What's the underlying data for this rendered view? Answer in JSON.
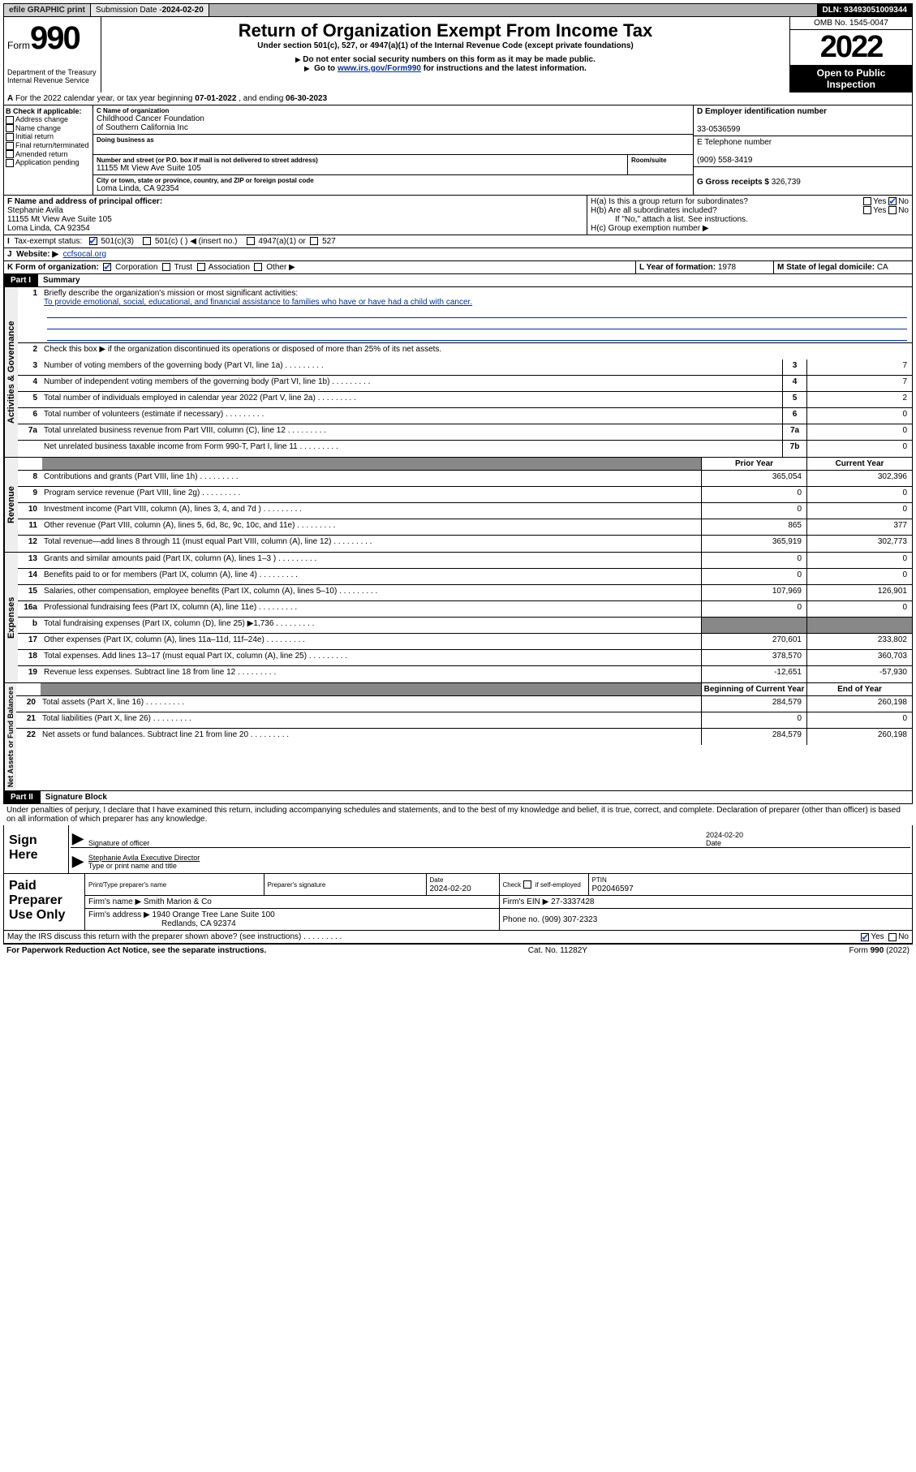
{
  "topbar": {
    "efile": "efile GRAPHIC print",
    "subdate_lbl": "Submission Date - ",
    "subdate": "2024-02-20",
    "dln": "DLN: 93493051009344"
  },
  "header": {
    "form_word": "Form",
    "form_num": "990",
    "dept": "Department of the Treasury\nInternal Revenue Service",
    "title": "Return of Organization Exempt From Income Tax",
    "sub1": "Under section 501(c), 527, or 4947(a)(1) of the Internal Revenue Code (except private foundations)",
    "sub2": "Do not enter social security numbers on this form as it may be made public.",
    "sub3_a": "Go to ",
    "sub3_link": "www.irs.gov/Form990",
    "sub3_b": " for instructions and the latest information.",
    "omb": "OMB No. 1545-0047",
    "year": "2022",
    "public": "Open to Public Inspection"
  },
  "A": {
    "text_a": "For the 2022 calendar year, or tax year beginning ",
    "begin": "07-01-2022",
    "text_b": ", and ending ",
    "end": "06-30-2023"
  },
  "B": {
    "hdr": "B Check if applicable:",
    "opts": [
      "Address change",
      "Name change",
      "Initial return",
      "Final return/terminated",
      "Amended return",
      "Application pending"
    ]
  },
  "C": {
    "name_lbl": "C Name of organization",
    "name": "Childhood Cancer Foundation\nof Southern California Inc",
    "dba_lbl": "Doing business as",
    "addr_lbl": "Number and street (or P.O. box if mail is not delivered to street address)",
    "room_lbl": "Room/suite",
    "addr": "11155 Mt View Ave Suite 105",
    "city_lbl": "City or town, state or province, country, and ZIP or foreign postal code",
    "city": "Loma Linda, CA  92354"
  },
  "D": {
    "lbl": "D Employer identification number",
    "val": "33-0536599"
  },
  "E": {
    "lbl": "E Telephone number",
    "val": "(909) 558-3419"
  },
  "G": {
    "lbl": "G Gross receipts $ ",
    "val": "326,739"
  },
  "F": {
    "lbl": "F  Name and address of principal officer:",
    "name": "Stephanie Avila",
    "addr": "11155 Mt View Ave Suite 105\nLoma Linda, CA  92354"
  },
  "H": {
    "a": "H(a)  Is this a group return for subordinates?",
    "b": "H(b)  Are all subordinates included?",
    "b2": "If \"No,\" attach a list. See instructions.",
    "c": "H(c)  Group exemption number ▶"
  },
  "I": {
    "lbl": "Tax-exempt status:",
    "o1": "501(c)(3)",
    "o2": "501(c) (  ) ◀ (insert no.)",
    "o3": "4947(a)(1) or",
    "o4": "527"
  },
  "J": {
    "lbl": "Website: ▶",
    "val": "ccfsocal.org"
  },
  "K": {
    "lbl": "K Form of organization:",
    "o1": "Corporation",
    "o2": "Trust",
    "o3": "Association",
    "o4": "Other ▶"
  },
  "L": {
    "lbl": "L Year of formation: ",
    "val": "1978"
  },
  "M": {
    "lbl": "M State of legal domicile: ",
    "val": "CA"
  },
  "part1": {
    "bar": "Part I",
    "title": "Summary"
  },
  "summary": {
    "l1a": "Briefly describe the organization's mission or most significant activities:",
    "l1b": "To provide emotional, social, educational, and financial assistance to families who have or have had a child with cancer.",
    "l2": "Check this box ▶       if the organization discontinued its operations or disposed of more than 25% of its net assets.",
    "rows_ag": [
      {
        "n": "3",
        "d": "Number of voting members of the governing body (Part VI, line 1a)",
        "b": "3",
        "v": "7"
      },
      {
        "n": "4",
        "d": "Number of independent voting members of the governing body (Part VI, line 1b)",
        "b": "4",
        "v": "7"
      },
      {
        "n": "5",
        "d": "Total number of individuals employed in calendar year 2022 (Part V, line 2a)",
        "b": "5",
        "v": "2"
      },
      {
        "n": "6",
        "d": "Total number of volunteers (estimate if necessary)",
        "b": "6",
        "v": "0"
      },
      {
        "n": "7a",
        "d": "Total unrelated business revenue from Part VIII, column (C), line 12",
        "b": "7a",
        "v": "0"
      },
      {
        "n": "",
        "d": "Net unrelated business taxable income from Form 990-T, Part I, line 11",
        "b": "7b",
        "v": "0"
      }
    ],
    "col_prior": "Prior Year",
    "col_curr": "Current Year",
    "rev": [
      {
        "n": "8",
        "d": "Contributions and grants (Part VIII, line 1h)",
        "p": "365,054",
        "c": "302,396"
      },
      {
        "n": "9",
        "d": "Program service revenue (Part VIII, line 2g)",
        "p": "0",
        "c": "0"
      },
      {
        "n": "10",
        "d": "Investment income (Part VIII, column (A), lines 3, 4, and 7d )",
        "p": "0",
        "c": "0"
      },
      {
        "n": "11",
        "d": "Other revenue (Part VIII, column (A), lines 5, 6d, 8c, 9c, 10c, and 11e)",
        "p": "865",
        "c": "377"
      },
      {
        "n": "12",
        "d": "Total revenue—add lines 8 through 11 (must equal Part VIII, column (A), line 12)",
        "p": "365,919",
        "c": "302,773"
      }
    ],
    "exp": [
      {
        "n": "13",
        "d": "Grants and similar amounts paid (Part IX, column (A), lines 1–3 )",
        "p": "0",
        "c": "0"
      },
      {
        "n": "14",
        "d": "Benefits paid to or for members (Part IX, column (A), line 4)",
        "p": "0",
        "c": "0"
      },
      {
        "n": "15",
        "d": "Salaries, other compensation, employee benefits (Part IX, column (A), lines 5–10)",
        "p": "107,969",
        "c": "126,901"
      },
      {
        "n": "16a",
        "d": "Professional fundraising fees (Part IX, column (A), line 11e)",
        "p": "0",
        "c": "0"
      },
      {
        "n": "b",
        "d": "Total fundraising expenses (Part IX, column (D), line 25) ▶1,736",
        "p": "",
        "c": "",
        "grey": true
      },
      {
        "n": "17",
        "d": "Other expenses (Part IX, column (A), lines 11a–11d, 11f–24e)",
        "p": "270,601",
        "c": "233,802"
      },
      {
        "n": "18",
        "d": "Total expenses. Add lines 13–17 (must equal Part IX, column (A), line 25)",
        "p": "378,570",
        "c": "360,703"
      },
      {
        "n": "19",
        "d": "Revenue less expenses. Subtract line 18 from line 12",
        "p": "-12,651",
        "c": "-57,930"
      }
    ],
    "col_beg": "Beginning of Current Year",
    "col_end": "End of Year",
    "net": [
      {
        "n": "20",
        "d": "Total assets (Part X, line 16)",
        "p": "284,579",
        "c": "260,198"
      },
      {
        "n": "21",
        "d": "Total liabilities (Part X, line 26)",
        "p": "0",
        "c": "0"
      },
      {
        "n": "22",
        "d": "Net assets or fund balances. Subtract line 21 from line 20",
        "p": "284,579",
        "c": "260,198"
      }
    ],
    "side_ag": "Activities & Governance",
    "side_rev": "Revenue",
    "side_exp": "Expenses",
    "side_net": "Net Assets or Fund Balances"
  },
  "part2": {
    "bar": "Part II",
    "title": "Signature Block"
  },
  "decl": "Under penalties of perjury, I declare that I have examined this return, including accompanying schedules and statements, and to the best of my knowledge and belief, it is true, correct, and complete. Declaration of preparer (other than officer) is based on all information of which preparer has any knowledge.",
  "sign": {
    "lbl": "Sign Here",
    "sig_lbl": "Signature of officer",
    "date_lbl": "Date",
    "date": "2024-02-20",
    "name": "Stephanie Avila  Executive Director",
    "type_lbl": "Type or print name and title"
  },
  "paid": {
    "lbl": "Paid Preparer Use Only",
    "h1": "Print/Type preparer's name",
    "h2": "Preparer's signature",
    "h3": "Date",
    "h3v": "2024-02-20",
    "h4a": "Check",
    "h4b": "if self-employed",
    "h5": "PTIN",
    "h5v": "P02046597",
    "r2a": "Firm's name    ▶",
    "r2b": "Smith Marion & Co",
    "r2c": "Firm's EIN ▶",
    "r2d": "27-3337428",
    "r3a": "Firm's address ▶",
    "r3b": "1940 Orange Tree Lane Suite 100",
    "r3c": "Phone no. ",
    "r3d": "(909) 307-2323",
    "r3e": "Redlands, CA  92374"
  },
  "may": "May the IRS discuss this return with the preparer shown above? (see instructions)",
  "foot": {
    "l": "For Paperwork Reduction Act Notice, see the separate instructions.",
    "m": "Cat. No. 11282Y",
    "r": "Form 990 (2022)"
  }
}
